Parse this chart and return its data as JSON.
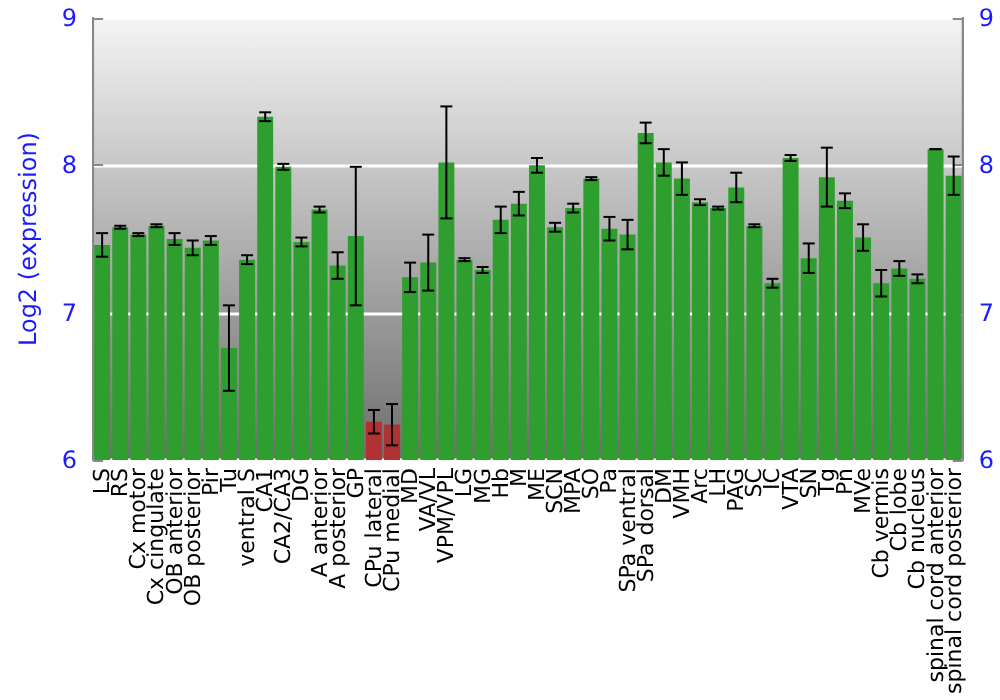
{
  "chart_data": {
    "type": "bar",
    "ylabel": "Log2 (expression)",
    "categories": [
      "LS",
      "RS",
      "Cx motor",
      "Cx cingulate",
      "OB anterior",
      "OB posterior",
      "Pir",
      "Tu",
      "ventral S",
      "CA1",
      "CA2/CA3",
      "DG",
      "A anterior",
      "A posterior",
      "GP",
      "CPu lateral",
      "CPu medial",
      "MD",
      "VA/VL",
      "VPM/VPL",
      "LG",
      "MG",
      "Hb",
      "M",
      "ME",
      "SCN",
      "MPA",
      "SO",
      "Pa",
      "SPa ventral",
      "SPa dorsal",
      "DM",
      "VMH",
      "Arc",
      "LH",
      "PAG",
      "SC",
      "IC",
      "VTA",
      "SN",
      "Tg",
      "Pn",
      "MVe",
      "Cb vermis",
      "Cb lobe",
      "Cb nucleus",
      "spinal cord anterior",
      "spinal cord posterior"
    ],
    "values": [
      7.46,
      7.58,
      7.53,
      7.59,
      7.5,
      7.44,
      7.49,
      6.76,
      7.36,
      8.33,
      7.99,
      7.48,
      7.7,
      7.32,
      7.52,
      6.26,
      6.24,
      7.24,
      7.34,
      8.02,
      7.36,
      7.29,
      7.63,
      7.74,
      8.0,
      7.58,
      7.71,
      7.91,
      7.57,
      7.53,
      8.22,
      8.02,
      7.91,
      7.75,
      7.71,
      7.85,
      7.59,
      7.2,
      8.05,
      7.37,
      7.92,
      7.76,
      7.51,
      7.2,
      7.3,
      7.23,
      8.11,
      7.93
    ],
    "errors": [
      0.08,
      0.01,
      0.01,
      0.01,
      0.04,
      0.05,
      0.03,
      0.29,
      0.03,
      0.03,
      0.02,
      0.03,
      0.02,
      0.09,
      0.47,
      0.08,
      0.14,
      0.1,
      0.19,
      0.38,
      0.01,
      0.02,
      0.09,
      0.08,
      0.05,
      0.03,
      0.03,
      0.01,
      0.08,
      0.1,
      0.07,
      0.09,
      0.11,
      0.02,
      0.01,
      0.1,
      0.01,
      0.03,
      0.02,
      0.1,
      0.2,
      0.05,
      0.09,
      0.09,
      0.05,
      0.03,
      0,
      0.13
    ],
    "colors": [
      "#2e9e2e",
      "#2e9e2e",
      "#2e9e2e",
      "#2e9e2e",
      "#2e9e2e",
      "#2e9e2e",
      "#2e9e2e",
      "#2e9e2e",
      "#2e9e2e",
      "#2e9e2e",
      "#2e9e2e",
      "#2e9e2e",
      "#2e9e2e",
      "#2e9e2e",
      "#2e9e2e",
      "#b03232",
      "#b03232",
      "#2e9e2e",
      "#2e9e2e",
      "#2e9e2e",
      "#2e9e2e",
      "#2e9e2e",
      "#2e9e2e",
      "#2e9e2e",
      "#2e9e2e",
      "#2e9e2e",
      "#2e9e2e",
      "#2e9e2e",
      "#2e9e2e",
      "#2e9e2e",
      "#2e9e2e",
      "#2e9e2e",
      "#2e9e2e",
      "#2e9e2e",
      "#2e9e2e",
      "#2e9e2e",
      "#2e9e2e",
      "#2e9e2e",
      "#2e9e2e",
      "#2e9e2e",
      "#2e9e2e",
      "#2e9e2e",
      "#2e9e2e",
      "#2e9e2e",
      "#2e9e2e",
      "#2e9e2e",
      "#2e9e2e",
      "#2e9e2e"
    ],
    "ylim": [
      6,
      9
    ],
    "yticks": [
      6,
      7,
      8,
      9
    ],
    "y2lim": [
      6,
      9
    ],
    "y2ticks": [
      6,
      7,
      8,
      9
    ],
    "grid": "y"
  }
}
